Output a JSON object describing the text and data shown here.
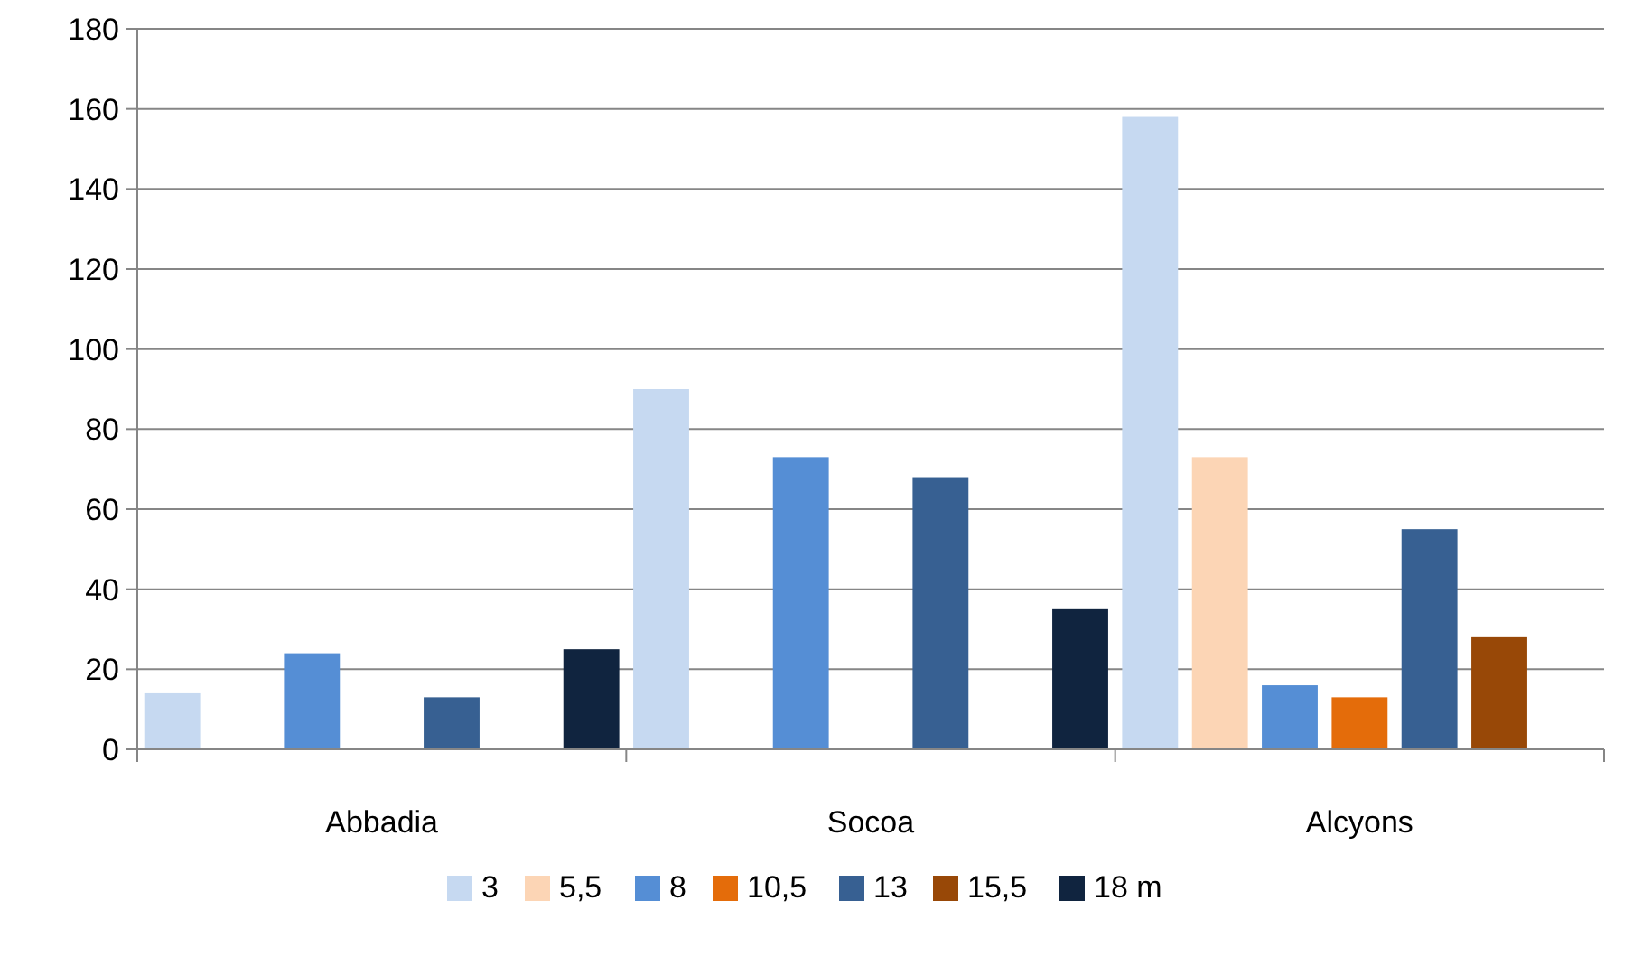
{
  "chart_data": {
    "type": "bar",
    "categories": [
      "Abbadia",
      "Socoa",
      "Alcyons"
    ],
    "series": [
      {
        "name": "3",
        "color": "#c6d9f1",
        "values": [
          14,
          90,
          158
        ]
      },
      {
        "name": "5,5",
        "color": "#fcd5b5",
        "values": [
          null,
          null,
          73
        ]
      },
      {
        "name": "8",
        "color": "#558ed5",
        "values": [
          24,
          73,
          16
        ]
      },
      {
        "name": "10,5",
        "color": "#e46c0a",
        "values": [
          null,
          null,
          13
        ]
      },
      {
        "name": "13",
        "color": "#376092",
        "values": [
          13,
          68,
          55
        ]
      },
      {
        "name": "15,5",
        "color": "#984807",
        "values": [
          null,
          null,
          28
        ]
      },
      {
        "name": "18 m",
        "color": "#10243f",
        "values": [
          25,
          35,
          null
        ]
      }
    ],
    "ylim": [
      0,
      180
    ],
    "yticks": [
      0,
      20,
      40,
      60,
      80,
      100,
      120,
      140,
      160,
      180
    ],
    "grid": "y",
    "legend": "bottom"
  }
}
